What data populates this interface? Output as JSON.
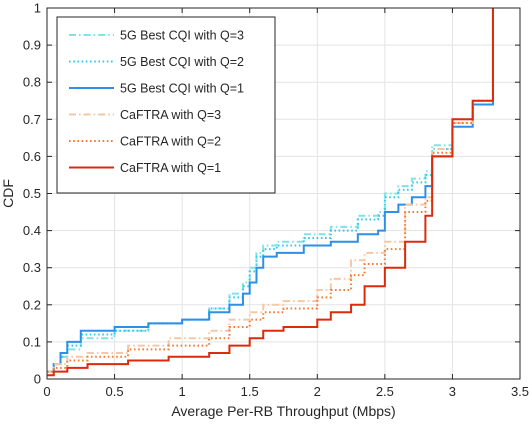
{
  "chart_data": {
    "type": "line",
    "title": "",
    "xlabel": "Average Per-RB Throughput (Mbps)",
    "ylabel": "CDF",
    "xlim": [
      0,
      3.5
    ],
    "ylim": [
      0,
      1
    ],
    "xticks": [
      0,
      0.5,
      1,
      1.5,
      2,
      2.5,
      3,
      3.5
    ],
    "xtick_labels": [
      "0",
      "0.5",
      "1",
      "1.5",
      "2",
      "2.5",
      "3",
      "3.5"
    ],
    "yticks": [
      0,
      0.1,
      0.2,
      0.3,
      0.4,
      0.5,
      0.6,
      0.7,
      0.8,
      0.9,
      1
    ],
    "ytick_labels": [
      "0",
      "0.1",
      "0.2",
      "0.3",
      "0.4",
      "0.5",
      "0.6",
      "0.7",
      "0.8",
      "0.9",
      "1"
    ],
    "grid": true,
    "legend_position": "top-left",
    "series": [
      {
        "name": "5G Best CQI with Q=3",
        "color": "#7fe3e8",
        "dash": "dashdot",
        "x": [
          0,
          0.05,
          0.1,
          0.15,
          0.25,
          0.5,
          0.75,
          1.0,
          1.2,
          1.35,
          1.45,
          1.5,
          1.55,
          1.6,
          1.7,
          1.9,
          2.1,
          2.3,
          2.45,
          2.5,
          2.6,
          2.7,
          2.8,
          2.85,
          3.0,
          3.15,
          3.3,
          3.3
        ],
        "y": [
          0.02,
          0.04,
          0.06,
          0.08,
          0.11,
          0.13,
          0.15,
          0.16,
          0.19,
          0.23,
          0.26,
          0.3,
          0.34,
          0.36,
          0.37,
          0.39,
          0.41,
          0.44,
          0.45,
          0.5,
          0.52,
          0.54,
          0.56,
          0.63,
          0.7,
          0.74,
          0.75,
          1.0
        ]
      },
      {
        "name": "5G Best CQI with Q=2",
        "color": "#33c8ee",
        "dash": "dotted",
        "x": [
          0,
          0.05,
          0.1,
          0.15,
          0.25,
          0.5,
          0.75,
          1.0,
          1.2,
          1.35,
          1.45,
          1.5,
          1.55,
          1.6,
          1.7,
          1.9,
          2.1,
          2.3,
          2.45,
          2.5,
          2.6,
          2.7,
          2.8,
          2.85,
          3.0,
          3.15,
          3.3,
          3.3
        ],
        "y": [
          0.02,
          0.04,
          0.06,
          0.09,
          0.12,
          0.13,
          0.15,
          0.16,
          0.19,
          0.22,
          0.25,
          0.29,
          0.33,
          0.35,
          0.36,
          0.38,
          0.4,
          0.43,
          0.44,
          0.49,
          0.51,
          0.53,
          0.55,
          0.62,
          0.69,
          0.74,
          0.75,
          1.0
        ]
      },
      {
        "name": "5G Best CQI with Q=1",
        "color": "#2f8fe8",
        "dash": "solid",
        "x": [
          0,
          0.05,
          0.1,
          0.15,
          0.25,
          0.5,
          0.75,
          1.0,
          1.2,
          1.35,
          1.45,
          1.5,
          1.55,
          1.6,
          1.7,
          1.9,
          2.1,
          2.3,
          2.45,
          2.5,
          2.6,
          2.7,
          2.8,
          2.85,
          3.0,
          3.15,
          3.3,
          3.3
        ],
        "y": [
          0.02,
          0.04,
          0.07,
          0.1,
          0.13,
          0.14,
          0.15,
          0.16,
          0.18,
          0.2,
          0.23,
          0.26,
          0.3,
          0.33,
          0.34,
          0.36,
          0.37,
          0.39,
          0.4,
          0.45,
          0.47,
          0.49,
          0.52,
          0.6,
          0.68,
          0.74,
          0.74,
          1.0
        ]
      },
      {
        "name": "CaFTRA with Q=3",
        "color": "#f7c7a3",
        "dash": "dashdot",
        "x": [
          0,
          0.05,
          0.15,
          0.3,
          0.6,
          0.9,
          1.2,
          1.35,
          1.5,
          1.6,
          1.75,
          2.0,
          2.1,
          2.25,
          2.35,
          2.5,
          2.65,
          2.8,
          2.85,
          3.0,
          3.15,
          3.3,
          3.3
        ],
        "y": [
          0.02,
          0.04,
          0.06,
          0.07,
          0.09,
          0.11,
          0.13,
          0.16,
          0.18,
          0.2,
          0.21,
          0.24,
          0.27,
          0.32,
          0.34,
          0.37,
          0.47,
          0.49,
          0.62,
          0.69,
          0.75,
          0.76,
          1.0
        ]
      },
      {
        "name": "CaFTRA with Q=2",
        "color": "#f47a34",
        "dash": "dotted",
        "x": [
          0,
          0.05,
          0.15,
          0.3,
          0.6,
          0.9,
          1.2,
          1.35,
          1.5,
          1.6,
          1.75,
          2.0,
          2.1,
          2.25,
          2.35,
          2.5,
          2.65,
          2.8,
          2.85,
          3.0,
          3.15,
          3.3,
          3.3
        ],
        "y": [
          0.02,
          0.03,
          0.05,
          0.06,
          0.08,
          0.09,
          0.11,
          0.14,
          0.16,
          0.18,
          0.19,
          0.22,
          0.24,
          0.28,
          0.31,
          0.35,
          0.45,
          0.48,
          0.61,
          0.69,
          0.75,
          0.76,
          1.0
        ]
      },
      {
        "name": "CaFTRA with Q=1",
        "color": "#dd2a0c",
        "dash": "solid",
        "x": [
          0,
          0.05,
          0.15,
          0.3,
          0.6,
          0.9,
          1.2,
          1.35,
          1.5,
          1.6,
          1.75,
          2.0,
          2.1,
          2.25,
          2.35,
          2.5,
          2.65,
          2.8,
          2.85,
          3.0,
          3.15,
          3.3,
          3.3
        ],
        "y": [
          0.01,
          0.02,
          0.03,
          0.04,
          0.05,
          0.06,
          0.07,
          0.09,
          0.11,
          0.13,
          0.14,
          0.16,
          0.18,
          0.2,
          0.25,
          0.3,
          0.37,
          0.44,
          0.6,
          0.7,
          0.75,
          0.76,
          1.0
        ]
      }
    ]
  }
}
